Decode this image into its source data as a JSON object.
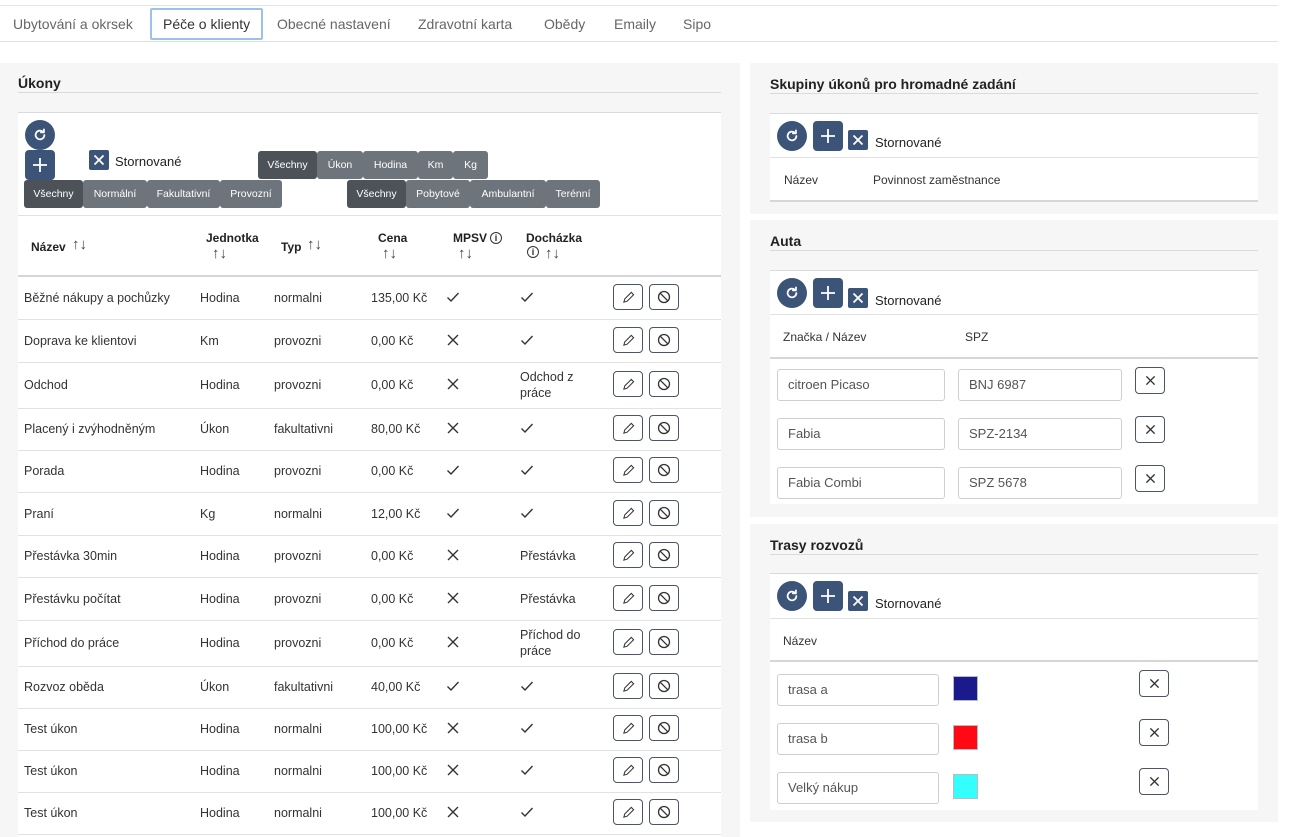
{
  "tabs": [
    {
      "label": "Ubytování a okrsek"
    },
    {
      "label": "Péče o klienty"
    },
    {
      "label": "Obecné nastavení"
    },
    {
      "label": "Zdravotní karta"
    },
    {
      "label": "Obědy"
    },
    {
      "label": "Emaily"
    },
    {
      "label": "Sipo"
    }
  ],
  "ukony": {
    "title": "Úkony",
    "stornovane_label": "Stornované",
    "filter_type": [
      "Všechny",
      "Normální",
      "Fakultativní",
      "Provozní"
    ],
    "filter_unit": [
      "Všechny",
      "Úkon",
      "Hodina",
      "Km",
      "Kg"
    ],
    "filter_kind": [
      "Všechny",
      "Pobytové",
      "Ambulantní",
      "Terénní"
    ],
    "headers": {
      "nazev": "Název",
      "jednotka": "Jednotka",
      "typ": "Typ",
      "cena": "Cena",
      "mpsv": "MPSV",
      "dochazka": "Docházka"
    },
    "rows": [
      {
        "nazev": "Běžné nákupy a pochůzky",
        "jednotka": "Hodina",
        "typ": "normalni",
        "cena": "135,00 Kč",
        "mpsv": "check",
        "dochazka": "check"
      },
      {
        "nazev": "Doprava ke klientovi",
        "jednotka": "Km",
        "typ": "provozni",
        "cena": "0,00 Kč",
        "mpsv": "x",
        "dochazka": "check"
      },
      {
        "nazev": "Odchod",
        "jednotka": "Hodina",
        "typ": "provozni",
        "cena": "0,00 Kč",
        "mpsv": "x",
        "dochazka": "Odchod z práce"
      },
      {
        "nazev": "Placený i zvýhodněným",
        "jednotka": "Úkon",
        "typ": "fakultativni",
        "cena": "80,00 Kč",
        "mpsv": "x",
        "dochazka": "check"
      },
      {
        "nazev": "Porada",
        "jednotka": "Hodina",
        "typ": "provozni",
        "cena": "0,00 Kč",
        "mpsv": "check",
        "dochazka": "check"
      },
      {
        "nazev": "Praní",
        "jednotka": "Kg",
        "typ": "normalni",
        "cena": "12,00 Kč",
        "mpsv": "check",
        "dochazka": "check"
      },
      {
        "nazev": "Přestávka 30min",
        "jednotka": "Hodina",
        "typ": "provozni",
        "cena": "0,00 Kč",
        "mpsv": "x",
        "dochazka": "Přestávka"
      },
      {
        "nazev": "Přestávku počítat",
        "jednotka": "Hodina",
        "typ": "provozni",
        "cena": "0,00 Kč",
        "mpsv": "x",
        "dochazka": "Přestávka"
      },
      {
        "nazev": "Příchod do práce",
        "jednotka": "Hodina",
        "typ": "provozni",
        "cena": "0,00 Kč",
        "mpsv": "x",
        "dochazka": "Příchod do práce"
      },
      {
        "nazev": "Rozvoz oběda",
        "jednotka": "Úkon",
        "typ": "fakultativni",
        "cena": "40,00 Kč",
        "mpsv": "check",
        "dochazka": "check"
      },
      {
        "nazev": "Test úkon",
        "jednotka": "Hodina",
        "typ": "normalni",
        "cena": "100,00 Kč",
        "mpsv": "x",
        "dochazka": "check"
      },
      {
        "nazev": "Test úkon",
        "jednotka": "Hodina",
        "typ": "normalni",
        "cena": "100,00 Kč",
        "mpsv": "x",
        "dochazka": "check"
      },
      {
        "nazev": "Test úkon",
        "jednotka": "Hodina",
        "typ": "normalni",
        "cena": "100,00 Kč",
        "mpsv": "x",
        "dochazka": "check"
      }
    ]
  },
  "skupiny": {
    "title": "Skupiny úkonů pro hromadné zadání",
    "stornovane_label": "Stornované",
    "headers": {
      "nazev": "Název",
      "povinnost": "Povinnost zaměstnance"
    }
  },
  "auta": {
    "title": "Auta",
    "stornovane_label": "Stornované",
    "headers": {
      "znacka": "Značka / Název",
      "spz": "SPZ"
    },
    "rows": [
      {
        "znacka": "citroen Picaso",
        "spz": "BNJ 6987"
      },
      {
        "znacka": "Fabia",
        "spz": "SPZ-2134"
      },
      {
        "znacka": "Fabia Combi",
        "spz": "SPZ 5678"
      }
    ]
  },
  "trasy": {
    "title": "Trasy rozvozů",
    "stornovane_label": "Stornované",
    "headers": {
      "nazev": "Název"
    },
    "rows": [
      {
        "nazev": "trasa a",
        "color": "#1a1a8c"
      },
      {
        "nazev": "trasa b",
        "color": "#ff0a14"
      },
      {
        "nazev": "Velký nákup",
        "color": "#33ffff"
      }
    ]
  }
}
